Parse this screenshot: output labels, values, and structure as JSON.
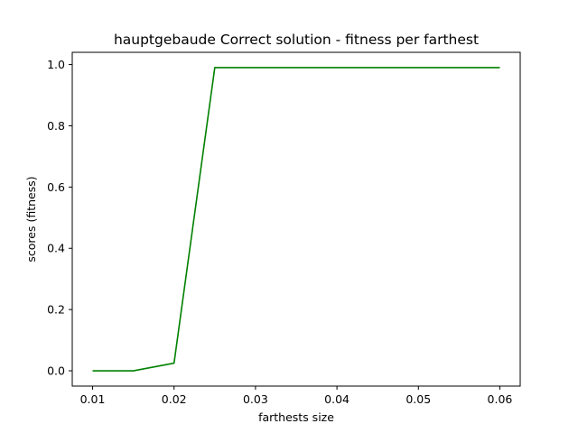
{
  "chart_data": {
    "type": "line",
    "title": "hauptgebaude Correct solution - fitness per farthest",
    "xlabel": "farthests size",
    "ylabel": "scores (fitness)",
    "xlim": [
      0.0075,
      0.0625
    ],
    "ylim": [
      -0.05,
      1.04
    ],
    "x_ticks": [
      0.01,
      0.02,
      0.03,
      0.04,
      0.05,
      0.06
    ],
    "x_tick_labels": [
      "0.01",
      "0.02",
      "0.03",
      "0.04",
      "0.05",
      "0.06"
    ],
    "y_ticks": [
      0.0,
      0.2,
      0.4,
      0.6,
      0.8,
      1.0
    ],
    "y_tick_labels": [
      "0.0",
      "0.2",
      "0.4",
      "0.6",
      "0.8",
      "1.0"
    ],
    "grid": false,
    "legend": "none",
    "series": [
      {
        "color": "#008000",
        "x": [
          0.01,
          0.015,
          0.02,
          0.025,
          0.03,
          0.035,
          0.04,
          0.045,
          0.05,
          0.055,
          0.06
        ],
        "y": [
          0.0,
          0.0,
          0.025,
          0.99,
          0.99,
          0.99,
          0.99,
          0.99,
          0.99,
          0.99,
          0.99
        ]
      }
    ]
  }
}
